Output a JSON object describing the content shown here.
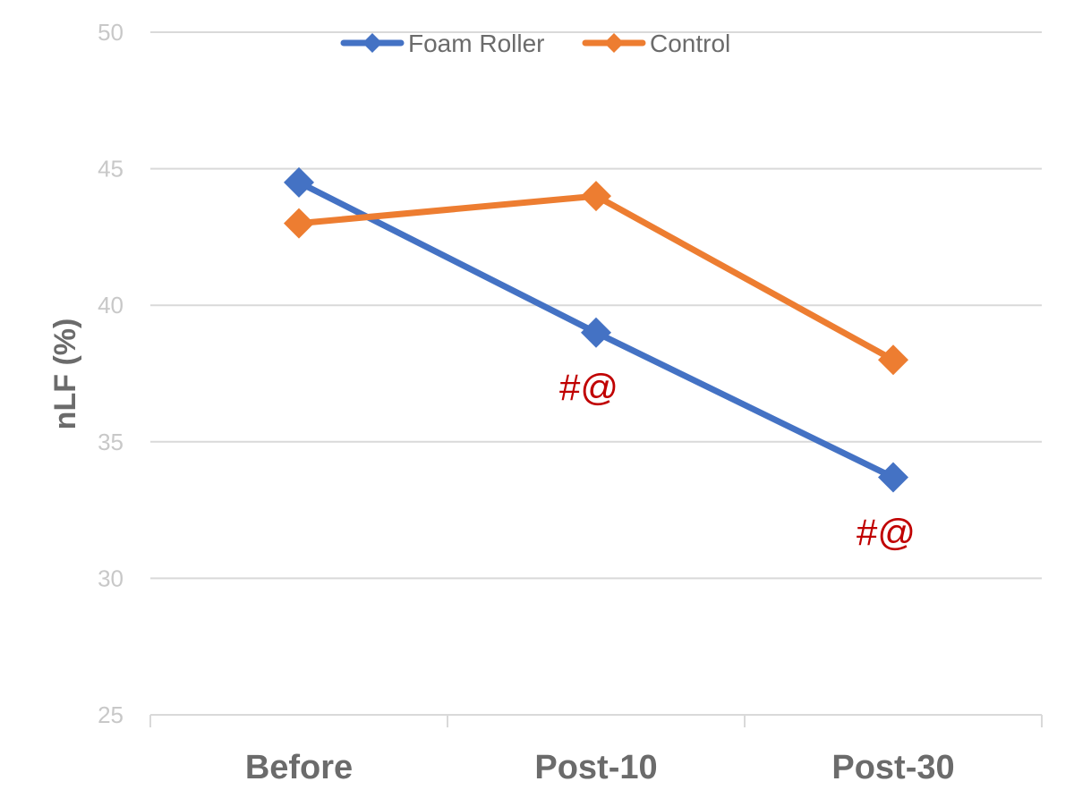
{
  "colors": {
    "foam_roller": "#4472C4",
    "control": "#ED7D31",
    "annotation": "#C00000",
    "grid": "#d9d9d9",
    "tick_text": "#c8c8c8",
    "label_text": "#6b6b6b"
  },
  "chart_data": {
    "type": "line",
    "categories": [
      "Before",
      "Post-10",
      "Post-30"
    ],
    "series": [
      {
        "name": "Foam Roller",
        "values": [
          44.5,
          39.0,
          33.7
        ],
        "color": "#4472C4",
        "marker": "diamond"
      },
      {
        "name": "Control",
        "values": [
          43.0,
          44.0,
          38.0
        ],
        "color": "#ED7D31",
        "marker": "diamond"
      }
    ],
    "ylabel": "nLF (%)",
    "xlabel": "",
    "ylim": [
      25,
      50
    ],
    "yticks": [
      25,
      30,
      35,
      40,
      45,
      50
    ],
    "grid": true,
    "legend_position": "top-center",
    "annotations": [
      {
        "text": "#@",
        "category": "Post-10",
        "series": "Foam Roller"
      },
      {
        "text": "#@",
        "category": "Post-30",
        "series": "Foam Roller"
      }
    ]
  }
}
